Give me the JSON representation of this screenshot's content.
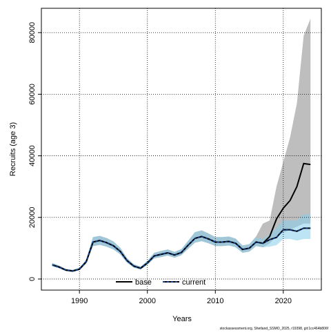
{
  "chart_data": {
    "type": "line",
    "xlabel": "Years",
    "ylabel": "Recruits (age 3)",
    "footer": "stockassessment.org, Shetland_SSMO_2025, r19398, git:1cc464b806f",
    "x": [
      1986,
      1987,
      1988,
      1989,
      1990,
      1991,
      1992,
      1993,
      1994,
      1995,
      1996,
      1997,
      1998,
      1999,
      2000,
      2001,
      2002,
      2003,
      2004,
      2005,
      2006,
      2007,
      2008,
      2009,
      2010,
      2011,
      2012,
      2013,
      2014,
      2015,
      2016,
      2017,
      2018,
      2019,
      2020,
      2021,
      2022,
      2023,
      2024
    ],
    "xlim": [
      1984.4,
      2025.6
    ],
    "xticks": [
      1990,
      2000,
      2010,
      2020
    ],
    "ylim": [
      -3600,
      87900
    ],
    "yticks": [
      0,
      20000,
      40000,
      60000,
      80000
    ],
    "grid": true,
    "legend": "bottom",
    "series": [
      {
        "name": "base",
        "color": "#000000",
        "band_color": "#bebebe",
        "dash": false,
        "values": [
          4600,
          3900,
          2900,
          2600,
          3200,
          5600,
          12000,
          12500,
          11800,
          10800,
          9000,
          6000,
          4200,
          3500,
          5200,
          7500,
          8000,
          8500,
          7800,
          8600,
          11000,
          13200,
          13800,
          13000,
          12000,
          12000,
          12200,
          11600,
          9600,
          10000,
          12000,
          11600,
          13800,
          19500,
          23000,
          25500,
          30000,
          37500,
          37200
        ],
        "lower": [
          4100,
          3500,
          2600,
          2300,
          2900,
          5000,
          10700,
          11100,
          10500,
          9600,
          8000,
          5300,
          3700,
          3100,
          4600,
          6700,
          7100,
          7600,
          6900,
          7700,
          9800,
          11800,
          12300,
          11600,
          10700,
          10700,
          10900,
          10300,
          8500,
          8900,
          10700,
          10300,
          11500,
          14000,
          15000,
          16000,
          17000,
          18000,
          18000
        ],
        "upper": [
          5200,
          4400,
          3300,
          3000,
          3600,
          6300,
          13600,
          14000,
          13300,
          12200,
          10200,
          6800,
          4800,
          4000,
          5900,
          8500,
          9100,
          9600,
          8800,
          9700,
          12400,
          15200,
          15800,
          14800,
          13600,
          13600,
          13800,
          13100,
          10900,
          11300,
          13800,
          18000,
          19000,
          30000,
          38000,
          46000,
          57000,
          79000,
          84500
        ]
      },
      {
        "name": "current",
        "color": "#0b3c8c",
        "band_color": "#87ceeb",
        "dash": true,
        "values": [
          4600,
          3900,
          2900,
          2600,
          3200,
          5600,
          12000,
          12500,
          11800,
          10800,
          9000,
          6000,
          4200,
          3500,
          5200,
          7500,
          8000,
          8500,
          7800,
          8600,
          11000,
          13200,
          13800,
          13000,
          12000,
          12000,
          12200,
          11600,
          9600,
          10000,
          12000,
          11600,
          12800,
          13500,
          16000,
          16000,
          15500,
          16500,
          16500
        ],
        "lower": [
          4100,
          3500,
          2600,
          2300,
          2900,
          5000,
          10700,
          11100,
          10500,
          9600,
          8000,
          5300,
          3700,
          3100,
          4600,
          6700,
          7100,
          7600,
          6900,
          7700,
          9800,
          11800,
          12300,
          11600,
          10700,
          10700,
          10900,
          10300,
          8500,
          8900,
          10700,
          10300,
          10500,
          11000,
          13000,
          13000,
          12500,
          13000,
          13000
        ],
        "upper": [
          5200,
          4400,
          3300,
          3000,
          3600,
          6300,
          13600,
          14000,
          13300,
          12200,
          10200,
          6800,
          4800,
          4000,
          5900,
          8500,
          9100,
          9600,
          8800,
          9700,
          12400,
          15200,
          15800,
          14800,
          13600,
          13600,
          13800,
          13100,
          10900,
          11300,
          13500,
          13100,
          14500,
          16500,
          19000,
          19000,
          19000,
          21000,
          21000
        ]
      }
    ]
  }
}
